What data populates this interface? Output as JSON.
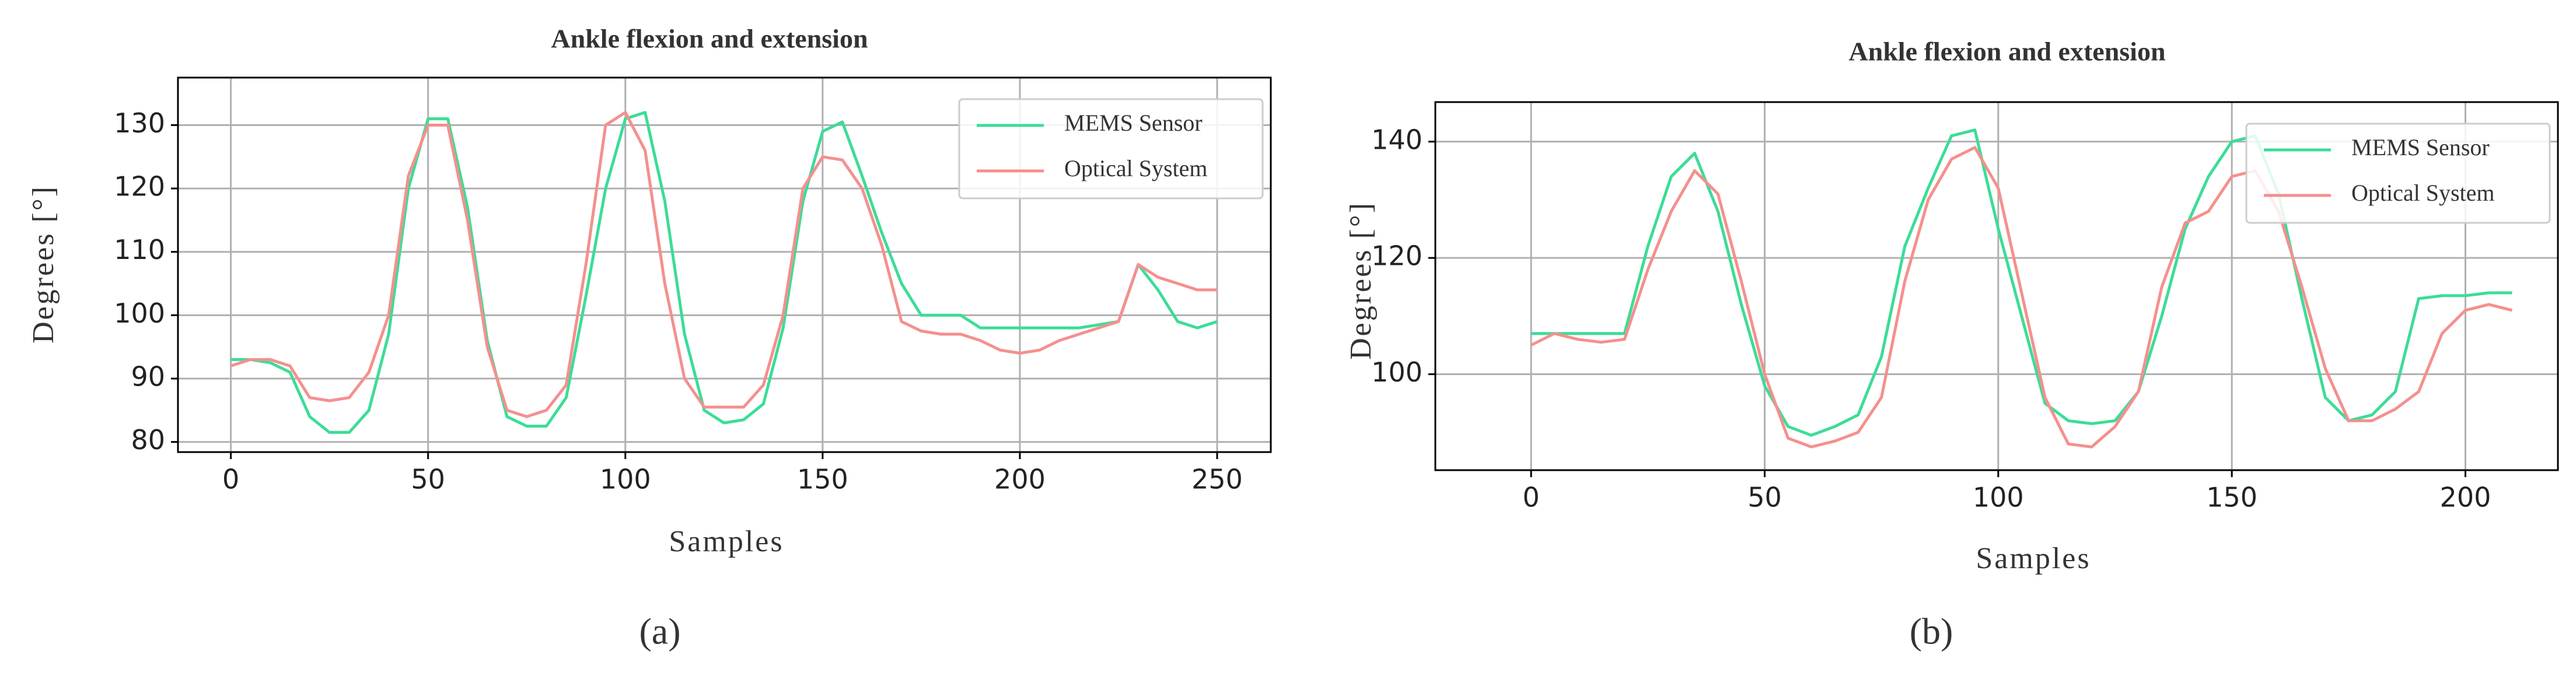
{
  "chart_data": [
    {
      "type": "line",
      "panel_label": "(a)",
      "title": "Ankle flexion and extension",
      "xlabel": "Samples",
      "ylabel": "Degrees [°]",
      "x": [
        0,
        5,
        10,
        15,
        20,
        25,
        30,
        35,
        40,
        45,
        50,
        55,
        60,
        65,
        70,
        75,
        80,
        85,
        90,
        95,
        100,
        105,
        110,
        115,
        120,
        125,
        130,
        135,
        140,
        145,
        150,
        155,
        160,
        165,
        170,
        175,
        180,
        185,
        190,
        195,
        200,
        205,
        210,
        215,
        220,
        225,
        230,
        235,
        240,
        245,
        250
      ],
      "series": [
        {
          "name": "MEMS Sensor",
          "color": "#3ddc97",
          "values": [
            93,
            93,
            92.5,
            91,
            84,
            81.5,
            81.5,
            85,
            97,
            120,
            131,
            131,
            117,
            96,
            84,
            82.5,
            82.5,
            87,
            103,
            120,
            131,
            132,
            118,
            97,
            85,
            83,
            83.5,
            86,
            98,
            118,
            129,
            130.5,
            122,
            113,
            105,
            100,
            100,
            100,
            98,
            98,
            98,
            98,
            98,
            98,
            98.5,
            99,
            108,
            104,
            99,
            98,
            99
          ]
        },
        {
          "name": "Optical System",
          "color": "#f4908e",
          "values": [
            92,
            93,
            93,
            92,
            87,
            86.5,
            87,
            91,
            100,
            122,
            130,
            130,
            115,
            95,
            85,
            84,
            85,
            89,
            108,
            130,
            132,
            126,
            105,
            90,
            85.5,
            85.5,
            85.5,
            89,
            100,
            120,
            125,
            124.5,
            120,
            111,
            99,
            97.5,
            97,
            97,
            96,
            94.5,
            94,
            94.5,
            96,
            97,
            98,
            99,
            108,
            106,
            105,
            104,
            104
          ]
        }
      ],
      "xlim": [
        -13.4,
        263.6
      ],
      "ylim": [
        78.4,
        137.5
      ],
      "xticks": [
        0,
        50,
        100,
        150,
        200,
        250
      ],
      "yticks": [
        80,
        90,
        100,
        110,
        120,
        130
      ],
      "grid": true,
      "legend": "upper right"
    },
    {
      "type": "line",
      "panel_label": "(b)",
      "title": "Ankle flexion and extension",
      "xlabel": "Samples",
      "ylabel": "Degrees [°]",
      "x": [
        0,
        5,
        10,
        15,
        20,
        25,
        30,
        35,
        40,
        45,
        50,
        55,
        60,
        65,
        70,
        75,
        80,
        85,
        90,
        95,
        100,
        105,
        110,
        115,
        120,
        125,
        130,
        135,
        140,
        145,
        150,
        155,
        160,
        165,
        170,
        175,
        180,
        185,
        190,
        195,
        200,
        205,
        210
      ],
      "series": [
        {
          "name": "MEMS Sensor",
          "color": "#3ddc97",
          "values": [
            107,
            107,
            107,
            107,
            107,
            122,
            134,
            138,
            128,
            112,
            98,
            91,
            89.5,
            91,
            93,
            103,
            122,
            132,
            141,
            142,
            125,
            110,
            95,
            92,
            91.5,
            92,
            97,
            110,
            125,
            134,
            140,
            141,
            131,
            113,
            96,
            92,
            93,
            97,
            113,
            113.5,
            113.5,
            114,
            114
          ]
        },
        {
          "name": "Optical System",
          "color": "#f4908e",
          "values": [
            105,
            107,
            106,
            105.5,
            106,
            118,
            128,
            135,
            131,
            116,
            100,
            89,
            87.5,
            88.5,
            90,
            96,
            116,
            130,
            137,
            139,
            132,
            114,
            96,
            88,
            87.5,
            91,
            97,
            115,
            126,
            128,
            134,
            135,
            128,
            115,
            101,
            92,
            92,
            94,
            97,
            107,
            111,
            112,
            111
          ]
        }
      ],
      "xlim": [
        -20.5,
        219.8
      ],
      "ylim": [
        83.5,
        146.8
      ],
      "xticks": [
        0,
        50,
        100,
        150,
        200
      ],
      "yticks": [
        100,
        120,
        140
      ],
      "grid": true,
      "legend": "upper right"
    }
  ]
}
